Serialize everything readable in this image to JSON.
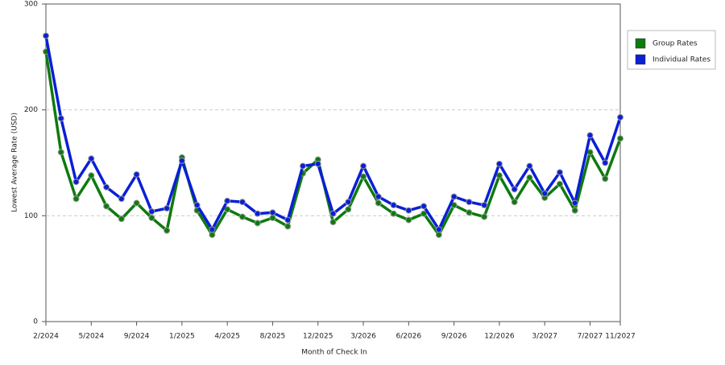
{
  "chart_data": {
    "type": "line",
    "x_label": "Month of Check In",
    "y_label": "Lowest Average Rate (USD)",
    "categories": [
      "2/2024",
      null,
      null,
      "5/2024",
      null,
      null,
      "9/2024",
      null,
      null,
      "1/2025",
      null,
      null,
      "4/2025",
      null,
      null,
      "8/2025",
      null,
      null,
      "12/2025",
      null,
      null,
      "3/2026",
      null,
      null,
      "6/2026",
      null,
      null,
      "9/2026",
      null,
      null,
      "12/2026",
      null,
      null,
      "3/2027",
      null,
      null,
      "7/2027",
      null,
      "11/2027"
    ],
    "series": [
      {
        "name": "Group Rates",
        "color": "#0e7a0e",
        "values": [
          255,
          160,
          116,
          138,
          109,
          97,
          112,
          98,
          86,
          155,
          105,
          82,
          106,
          99,
          93,
          98,
          90,
          140,
          153,
          94,
          106,
          137,
          112,
          102,
          96,
          102,
          82,
          110,
          103,
          99,
          138,
          113,
          136,
          117,
          130,
          105,
          160,
          135,
          173
        ]
      },
      {
        "name": "Individual Rates",
        "color": "#0a1fd6",
        "values": [
          270,
          192,
          132,
          154,
          127,
          116,
          139,
          104,
          107,
          152,
          110,
          87,
          114,
          113,
          102,
          103,
          96,
          147,
          149,
          102,
          113,
          147,
          118,
          110,
          105,
          109,
          87,
          118,
          113,
          110,
          149,
          125,
          147,
          121,
          141,
          112,
          176,
          150,
          193
        ]
      }
    ],
    "ylim": [
      0,
      300
    ],
    "yticks": [
      0,
      100,
      200,
      300
    ],
    "grid": true,
    "legend": "right"
  }
}
